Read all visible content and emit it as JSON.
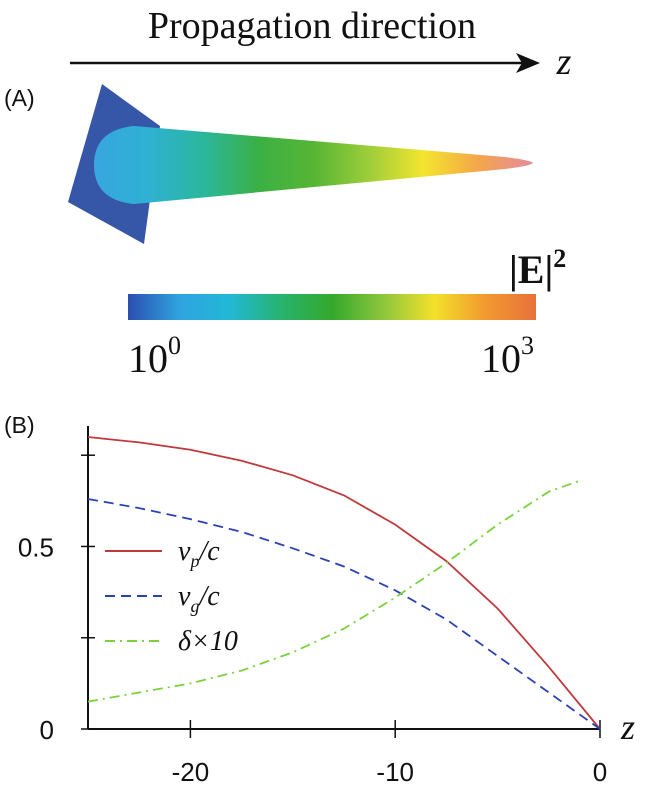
{
  "panel_a": {
    "label": "(A)",
    "header": "Propagation direction",
    "axis_symbol": "z",
    "colorbar": {
      "quantity": "|E|",
      "exponent": "2",
      "min_label": {
        "base": "10",
        "exp": "0"
      },
      "max_label": {
        "base": "10",
        "exp": "3"
      },
      "colors": [
        "#2b4fb0",
        "#2fa3df",
        "#22b8d6",
        "#27b36e",
        "#34a82c",
        "#8cc63c",
        "#f3e12a",
        "#f29a2f",
        "#e8713a"
      ]
    },
    "taper_colors": {
      "base": "#3656a8",
      "stops": [
        "#38a6e0",
        "#2eb1d3",
        "#2bb79c",
        "#3bb045",
        "#56b534",
        "#9ccd3a",
        "#f4e52e",
        "#f4a64a",
        "#e58aa0"
      ]
    }
  },
  "panel_b": {
    "label": "(B)",
    "chart_data": {
      "type": "line",
      "xlim": [
        -25,
        0
      ],
      "ylim": [
        0,
        0.83
      ],
      "x_ticks": [
        -20,
        -10,
        0
      ],
      "x_tick_labels": [
        "-20",
        "-10",
        "0"
      ],
      "y_ticks": [
        0,
        0.25,
        0.5,
        0.75
      ],
      "y_tick_labels": [
        {
          "value": 0,
          "label": "0"
        },
        {
          "value": 0.5,
          "label": "0.5"
        }
      ],
      "xlabel": "z",
      "ylabel": "",
      "grid": false,
      "legend_position": "left",
      "series": [
        {
          "name": "v_p/c",
          "label_main": "v",
          "label_sub": "p",
          "label_tail": "/c",
          "color": "#c0393c",
          "dash": "solid",
          "x": [
            -25,
            -22.5,
            -20,
            -17.5,
            -15,
            -12.5,
            -10,
            -7.5,
            -5,
            -2.5,
            0
          ],
          "y": [
            0.8,
            0.785,
            0.765,
            0.735,
            0.695,
            0.64,
            0.56,
            0.46,
            0.33,
            0.17,
            0.0
          ]
        },
        {
          "name": "v_g/c",
          "label_main": "v",
          "label_sub": "g",
          "label_tail": "/c",
          "color": "#2a43b3",
          "dash": "dashed",
          "x": [
            -25,
            -22.5,
            -20,
            -17.5,
            -15,
            -12.5,
            -10,
            -7.5,
            -5,
            -2.5,
            0
          ],
          "y": [
            0.63,
            0.605,
            0.575,
            0.54,
            0.495,
            0.445,
            0.38,
            0.3,
            0.2,
            0.1,
            0.0
          ]
        },
        {
          "name": "δ×10",
          "label_main": "δ×10",
          "label_sub": "",
          "label_tail": "",
          "color": "#7bd23c",
          "dash": "dashdot",
          "x": [
            -25,
            -22.5,
            -20,
            -17.5,
            -15,
            -12.5,
            -10,
            -7.5,
            -5,
            -2.5,
            -1
          ],
          "y": [
            0.075,
            0.1,
            0.125,
            0.16,
            0.21,
            0.275,
            0.36,
            0.455,
            0.56,
            0.65,
            0.68
          ]
        }
      ]
    }
  }
}
